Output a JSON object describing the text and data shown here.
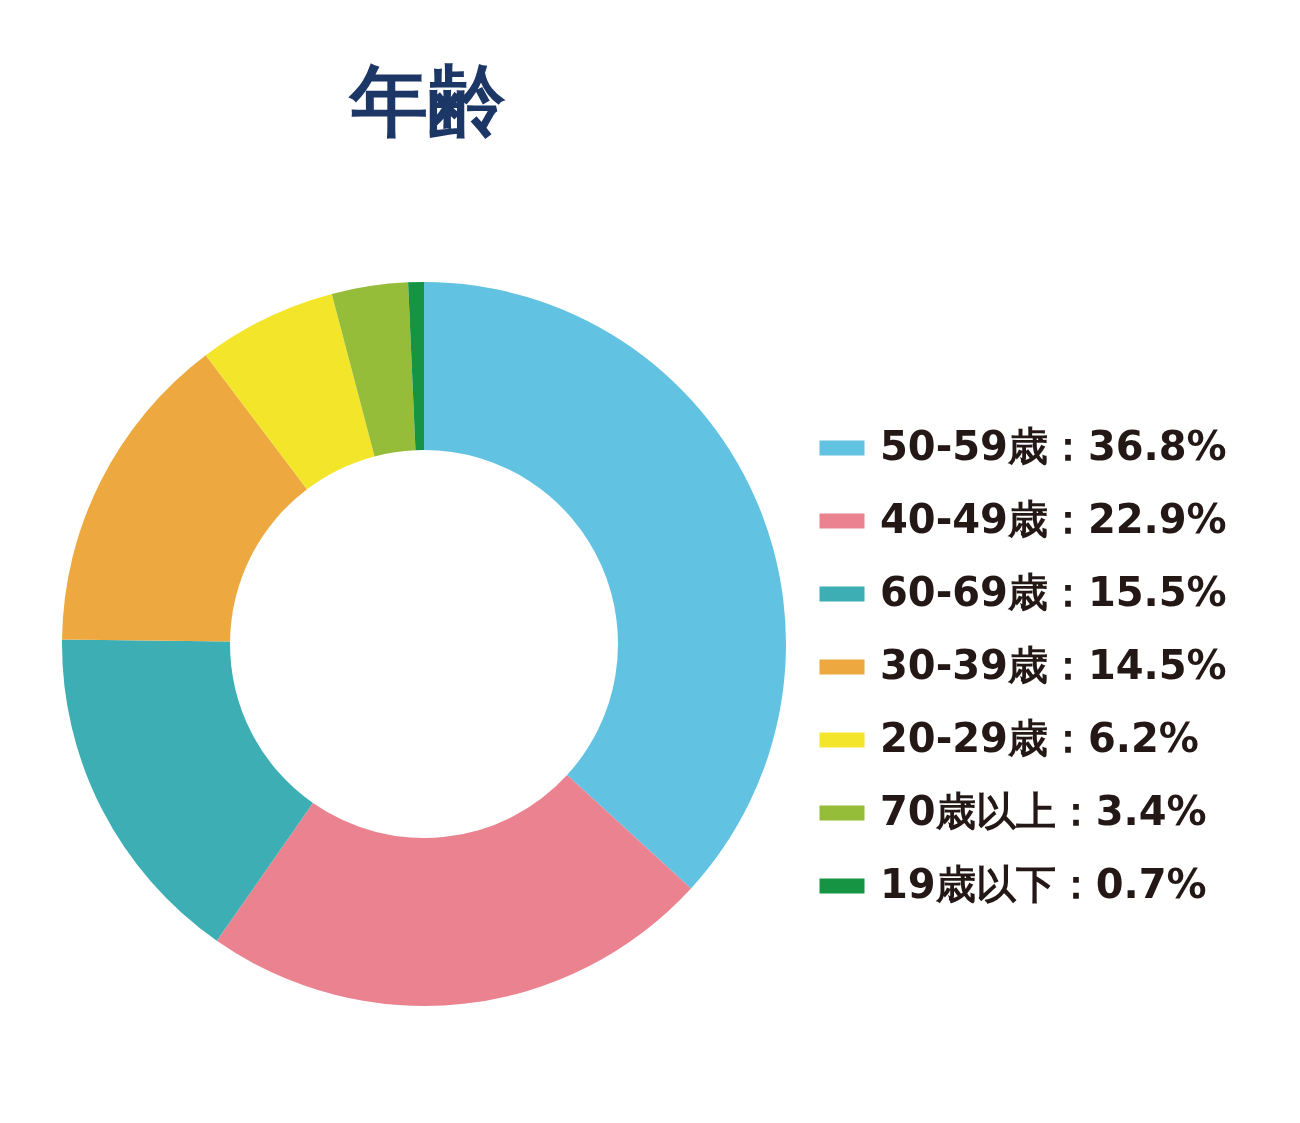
{
  "chart_data": {
    "type": "donut",
    "title": "年齢",
    "categories": [
      "50-59歳：36.8%",
      "40-49歳：22.9%",
      "60-69歳：15.5%",
      "30-39歳：14.5%",
      "20-29歳：6.2%",
      "70歳以上：3.4%",
      "19歳以下：0.7%"
    ],
    "values": [
      36.8,
      22.9,
      15.5,
      14.5,
      6.2,
      3.4,
      0.7
    ],
    "colors": [
      "#62c2e1",
      "#ea838f",
      "#3daeb3",
      "#eda93f",
      "#f3e52a",
      "#96bd3a",
      "#169444"
    ],
    "legend": "right"
  }
}
